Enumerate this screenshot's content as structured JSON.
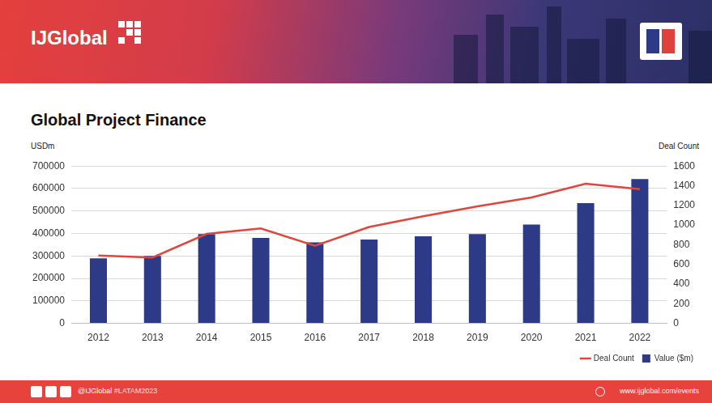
{
  "header": {
    "logo": "IJGlobal"
  },
  "chart_data": {
    "type": "bar",
    "title": "Global Project Finance",
    "y_label": "USDm",
    "y2_label": "Deal Count",
    "categories": [
      "2012",
      "2013",
      "2014",
      "2015",
      "2016",
      "2017",
      "2018",
      "2019",
      "2020",
      "2021",
      "2022"
    ],
    "series": [
      {
        "name": "Value ($m)",
        "type": "bar",
        "color": "#2c3a87",
        "values": [
          289000,
          300000,
          397000,
          380000,
          360000,
          373000,
          387000,
          397000,
          440000,
          535000,
          642000
        ]
      },
      {
        "name": "Deal Count",
        "type": "line",
        "color": "#e0463e",
        "axis": "y2",
        "marker": "none",
        "line_style": "solid",
        "values": [
          690,
          670,
          910,
          965,
          790,
          980,
          1090,
          1190,
          1280,
          1420,
          1365
        ]
      }
    ],
    "ylim": [
      0,
      700000
    ],
    "yticks": [
      0,
      100000,
      200000,
      300000,
      400000,
      500000,
      600000,
      700000
    ],
    "y2lim": [
      0,
      1600
    ],
    "y2ticks": [
      0,
      200,
      400,
      600,
      800,
      1000,
      1200,
      1400,
      1600
    ],
    "grid": true,
    "legend": "bottom right"
  },
  "footer": {
    "handle": "@IJGlobal",
    "hashtag": "#LATAM2023",
    "url": "www.ijglobal.com/events"
  }
}
